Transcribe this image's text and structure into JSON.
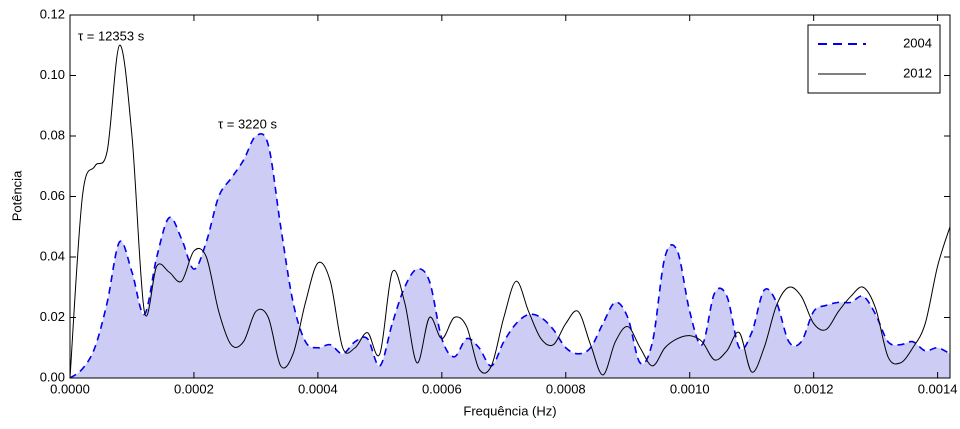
{
  "chart_data": {
    "type": "line",
    "xlabel": "Frequência (Hz)",
    "ylabel": "Potência",
    "x": [
      0,
      2e-05,
      4e-05,
      6e-05,
      8e-05,
      0.0001,
      0.00012,
      0.00014,
      0.00016,
      0.00018,
      0.0002,
      0.00022,
      0.00024,
      0.00026,
      0.00028,
      0.0003,
      0.00032,
      0.00034,
      0.00036,
      0.00038,
      0.0004,
      0.00042,
      0.00044,
      0.00046,
      0.00048,
      0.0005,
      0.00052,
      0.00054,
      0.00056,
      0.00058,
      0.0006,
      0.00062,
      0.00064,
      0.00066,
      0.00068,
      0.0007,
      0.00072,
      0.00074,
      0.00076,
      0.00078,
      0.0008,
      0.00082,
      0.00084,
      0.00086,
      0.00088,
      0.0009,
      0.00092,
      0.00094,
      0.00096,
      0.00098,
      0.001,
      0.00102,
      0.00104,
      0.00106,
      0.00108,
      0.0011,
      0.00112,
      0.00114,
      0.00116,
      0.00118,
      0.0012,
      0.00122,
      0.00124,
      0.00126,
      0.00128,
      0.0013,
      0.00132,
      0.00134,
      0.00136,
      0.00138,
      0.0014,
      0.00142
    ],
    "series": [
      {
        "name": "2004",
        "color": "#0000ee",
        "dashed": true,
        "fill": "#ccccf5",
        "values": [
          0,
          0.003,
          0.01,
          0.025,
          0.045,
          0.035,
          0.021,
          0.04,
          0.053,
          0.046,
          0.036,
          0.045,
          0.06,
          0.066,
          0.072,
          0.08,
          0.077,
          0.05,
          0.025,
          0.012,
          0.01,
          0.011,
          0.008,
          0.012,
          0.013,
          0.004,
          0.018,
          0.03,
          0.036,
          0.032,
          0.013,
          0.007,
          0.013,
          0.01,
          0.004,
          0.012,
          0.018,
          0.021,
          0.02,
          0.016,
          0.01,
          0.008,
          0.01,
          0.018,
          0.025,
          0.02,
          0.005,
          0.012,
          0.04,
          0.042,
          0.022,
          0.011,
          0.028,
          0.027,
          0.01,
          0.015,
          0.029,
          0.025,
          0.012,
          0.012,
          0.022,
          0.024,
          0.025,
          0.025,
          0.027,
          0.021,
          0.012,
          0.011,
          0.012,
          0.009,
          0.01,
          0.008
        ]
      },
      {
        "name": "2012",
        "color": "#000000",
        "dashed": false,
        "values": [
          0,
          0.06,
          0.07,
          0.075,
          0.11,
          0.08,
          0.022,
          0.037,
          0.035,
          0.032,
          0.042,
          0.04,
          0.022,
          0.011,
          0.012,
          0.022,
          0.02,
          0.004,
          0.008,
          0.025,
          0.038,
          0.032,
          0.01,
          0.01,
          0.015,
          0.008,
          0.035,
          0.025,
          0.005,
          0.02,
          0.013,
          0.02,
          0.017,
          0.003,
          0.004,
          0.02,
          0.032,
          0.022,
          0.013,
          0.011,
          0.018,
          0.022,
          0.011,
          0.001,
          0.012,
          0.017,
          0.01,
          0.004,
          0.01,
          0.013,
          0.014,
          0.012,
          0.006,
          0.009,
          0.015,
          0.002,
          0.01,
          0.024,
          0.03,
          0.027,
          0.018,
          0.016,
          0.022,
          0.027,
          0.03,
          0.023,
          0.007,
          0.005,
          0.01,
          0.018,
          0.037,
          0.05
        ]
      }
    ],
    "annotations": [
      "τ = 12353 s",
      "τ = 3220 s"
    ],
    "xlim": [
      0,
      0.00142
    ],
    "xticks": [
      {
        "value": 0,
        "label": "0.0000"
      },
      {
        "value": 0.0002,
        "label": "0.0002"
      },
      {
        "value": 0.0004,
        "label": "0.0004"
      },
      {
        "value": 0.0006,
        "label": "0.0006"
      },
      {
        "value": 0.0008,
        "label": "0.0008"
      },
      {
        "value": 0.001,
        "label": "0.0010"
      },
      {
        "value": 0.0012,
        "label": "0.0012"
      },
      {
        "value": 0.0014,
        "label": "0.0014"
      }
    ],
    "ylim": [
      0,
      0.12
    ],
    "yticks": [
      {
        "value": 0,
        "label": "0.00"
      },
      {
        "value": 0.02,
        "label": "0.02"
      },
      {
        "value": 0.04,
        "label": "0.04"
      },
      {
        "value": 0.06,
        "label": "0.06"
      },
      {
        "value": 0.08,
        "label": "0.08"
      },
      {
        "value": 0.1,
        "label": "0.10"
      },
      {
        "value": 0.12,
        "label": "0.12"
      }
    ],
    "legend": "upper right",
    "grid": false
  }
}
